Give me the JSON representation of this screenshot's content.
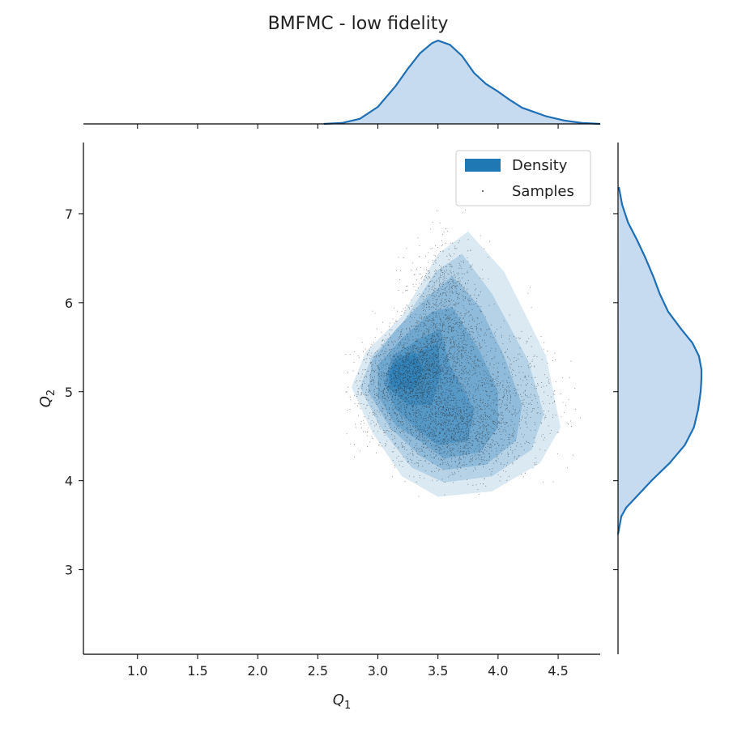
{
  "chart_data": {
    "type": "scatter",
    "subtype": "joint-kde",
    "title": "BMFMC - low fidelity",
    "xlabel": "Q",
    "xlabel_sub": "1",
    "ylabel": "Q",
    "ylabel_sub": "2",
    "xlim": [
      0.55,
      4.85
    ],
    "ylim": [
      2.05,
      7.8
    ],
    "xticks": [
      1.0,
      1.5,
      2.0,
      2.5,
      3.0,
      3.5,
      4.0,
      4.5
    ],
    "xtick_labels": [
      "1.0",
      "1.5",
      "2.0",
      "2.5",
      "3.0",
      "3.5",
      "4.0",
      "4.5"
    ],
    "yticks": [
      3,
      4,
      5,
      6,
      7
    ],
    "ytick_labels": [
      "3",
      "4",
      "5",
      "6",
      "7"
    ],
    "legend": {
      "position": "top-right",
      "entries": [
        {
          "label": "Density",
          "kind": "patch",
          "color": "#1f77b4"
        },
        {
          "label": "Samples",
          "kind": "point",
          "color": "#333333"
        }
      ]
    },
    "grid": false,
    "colors": {
      "density": "#1f77b4",
      "marginal_fill": "#c6dbef",
      "marginal_line": "#1f6fb4",
      "samples": "#222222"
    },
    "density_levels": [
      {
        "level": 1,
        "polygon": [
          [
            3.5,
            3.82
          ],
          [
            3.95,
            3.88
          ],
          [
            4.35,
            4.2
          ],
          [
            4.52,
            4.6
          ],
          [
            4.4,
            5.4
          ],
          [
            4.05,
            6.35
          ],
          [
            3.75,
            6.8
          ],
          [
            3.5,
            6.55
          ],
          [
            3.2,
            5.85
          ],
          [
            2.9,
            5.45
          ],
          [
            2.78,
            5.05
          ],
          [
            2.95,
            4.55
          ],
          [
            3.2,
            4.05
          ]
        ]
      },
      {
        "level": 2,
        "polygon": [
          [
            3.55,
            3.98
          ],
          [
            3.95,
            4.05
          ],
          [
            4.28,
            4.35
          ],
          [
            4.38,
            4.75
          ],
          [
            4.25,
            5.35
          ],
          [
            3.95,
            6.1
          ],
          [
            3.7,
            6.55
          ],
          [
            3.48,
            6.35
          ],
          [
            3.22,
            5.8
          ],
          [
            2.95,
            5.4
          ],
          [
            2.85,
            5.05
          ],
          [
            3.02,
            4.6
          ],
          [
            3.28,
            4.15
          ]
        ]
      },
      {
        "level": 3,
        "polygon": [
          [
            3.55,
            4.12
          ],
          [
            3.9,
            4.18
          ],
          [
            4.15,
            4.45
          ],
          [
            4.2,
            4.85
          ],
          [
            4.05,
            5.4
          ],
          [
            3.85,
            5.95
          ],
          [
            3.62,
            6.3
          ],
          [
            3.4,
            6.05
          ],
          [
            3.15,
            5.7
          ],
          [
            2.95,
            5.35
          ],
          [
            2.92,
            5.0
          ],
          [
            3.1,
            4.6
          ],
          [
            3.35,
            4.28
          ]
        ]
      },
      {
        "level": 4,
        "polygon": [
          [
            3.55,
            4.25
          ],
          [
            3.85,
            4.32
          ],
          [
            4.0,
            4.6
          ],
          [
            4.0,
            5.0
          ],
          [
            3.85,
            5.45
          ],
          [
            3.62,
            5.95
          ],
          [
            3.45,
            5.9
          ],
          [
            3.2,
            5.6
          ],
          [
            3.0,
            5.3
          ],
          [
            3.0,
            4.95
          ],
          [
            3.15,
            4.62
          ],
          [
            3.4,
            4.4
          ]
        ]
      },
      {
        "level": 5,
        "polygon": [
          [
            3.5,
            4.4
          ],
          [
            3.75,
            4.45
          ],
          [
            3.8,
            4.8
          ],
          [
            3.6,
            5.3
          ],
          [
            3.52,
            5.7
          ],
          [
            3.35,
            5.6
          ],
          [
            3.12,
            5.4
          ],
          [
            3.05,
            5.1
          ],
          [
            3.15,
            4.8
          ],
          [
            3.35,
            4.55
          ]
        ]
      },
      {
        "level": 6,
        "polygon": [
          [
            3.25,
            4.85
          ],
          [
            3.45,
            4.85
          ],
          [
            3.52,
            5.2
          ],
          [
            3.5,
            5.55
          ],
          [
            3.35,
            5.45
          ],
          [
            3.12,
            5.3
          ],
          [
            3.08,
            5.05
          ]
        ]
      },
      {
        "level": 7,
        "polygon": [
          [
            3.12,
            5.05
          ],
          [
            3.3,
            5.02
          ],
          [
            3.38,
            5.25
          ],
          [
            3.3,
            5.45
          ],
          [
            3.15,
            5.38
          ],
          [
            3.08,
            5.2
          ]
        ]
      }
    ],
    "marginal_x": {
      "x": [
        2.55,
        2.7,
        2.85,
        3.0,
        3.15,
        3.25,
        3.35,
        3.45,
        3.5,
        3.6,
        3.7,
        3.8,
        3.9,
        4.0,
        4.1,
        4.2,
        4.3,
        4.4,
        4.55,
        4.7,
        4.85
      ],
      "density": [
        0.0,
        0.01,
        0.06,
        0.2,
        0.45,
        0.65,
        0.83,
        0.95,
        0.98,
        0.93,
        0.8,
        0.6,
        0.47,
        0.38,
        0.28,
        0.19,
        0.14,
        0.09,
        0.04,
        0.01,
        0.0
      ]
    },
    "marginal_y": {
      "y": [
        3.4,
        3.6,
        3.7,
        3.8,
        3.9,
        4.0,
        4.2,
        4.4,
        4.6,
        4.8,
        5.0,
        5.15,
        5.25,
        5.4,
        5.55,
        5.7,
        5.9,
        6.1,
        6.3,
        6.5,
        6.7,
        6.9,
        7.1,
        7.3
      ],
      "density": [
        0.0,
        0.04,
        0.1,
        0.2,
        0.3,
        0.4,
        0.62,
        0.8,
        0.91,
        0.96,
        0.99,
        1.0,
        1.0,
        0.97,
        0.89,
        0.76,
        0.6,
        0.5,
        0.42,
        0.33,
        0.23,
        0.12,
        0.05,
        0.01
      ]
    },
    "samples": {
      "n_shown": 5200,
      "components": [
        {
          "weight": 0.4,
          "mean": [
            3.3,
            5.2
          ],
          "sd": [
            0.22,
            0.3
          ],
          "rho": 0.3
        },
        {
          "weight": 0.25,
          "mean": [
            3.6,
            4.55
          ],
          "sd": [
            0.25,
            0.25
          ],
          "rho": -0.1
        },
        {
          "weight": 0.2,
          "mean": [
            3.9,
            5.0
          ],
          "sd": [
            0.3,
            0.4
          ],
          "rho": -0.2
        },
        {
          "weight": 0.15,
          "mean": [
            3.55,
            6.0
          ],
          "sd": [
            0.15,
            0.35
          ],
          "rho": 0.0
        }
      ]
    }
  }
}
